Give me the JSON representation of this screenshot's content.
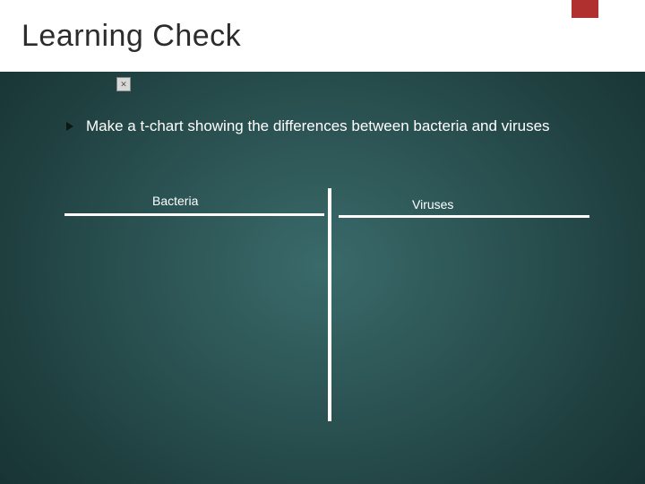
{
  "slide": {
    "title": "Learning Check",
    "bullet_text": "Make a t-chart showing the differences between bacteria and viruses",
    "tchart": {
      "left_header": "Bacteria",
      "right_header": "Viruses"
    },
    "styling": {
      "title_bg": "#ffffff",
      "title_color": "#2c2c2c",
      "title_fontsize": 34,
      "accent_color": "#b03030",
      "body_text_color": "#ffffff",
      "bullet_fontsize": 17,
      "header_fontsize": 14,
      "line_color": "#ffffff",
      "line_thickness": 3,
      "bg_gradient_inner": "#3a6a6a",
      "bg_gradient_outer": "#162f2f",
      "bullet_arrow_color": "#0a1818"
    }
  }
}
